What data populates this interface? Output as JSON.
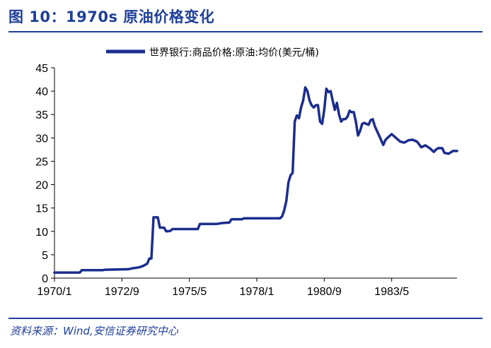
{
  "header": {
    "title": "图 10：1970s 原油价格变化"
  },
  "footer": {
    "source": "资料来源：Wind,安信证券研究中心"
  },
  "colors": {
    "accent": "#1f3f9a",
    "series_line": "#1b2d8f"
  },
  "chart_data": {
    "type": "line",
    "title": "",
    "xlabel": "",
    "ylabel": "",
    "ylim": [
      0,
      45
    ],
    "xlim": [
      "1970-01",
      "1985-12"
    ],
    "yticks": [
      0,
      5,
      10,
      15,
      20,
      25,
      30,
      35,
      40,
      45
    ],
    "xticks": [
      "1970/1",
      "1972/9",
      "1975/5",
      "1978/1",
      "1980/9",
      "1983/5"
    ],
    "grid": false,
    "legend_position": "top",
    "series": [
      {
        "name": "世界银行:商品价格:原油:均价(美元/桶)",
        "points": [
          [
            "1970-01",
            1.2
          ],
          [
            "1970-12",
            1.2
          ],
          [
            "1971-01",
            1.2
          ],
          [
            "1971-02",
            1.7
          ],
          [
            "1971-12",
            1.7
          ],
          [
            "1972-01",
            1.8
          ],
          [
            "1972-12",
            1.9
          ],
          [
            "1973-02",
            2.1
          ],
          [
            "1973-05",
            2.3
          ],
          [
            "1973-07",
            2.6
          ],
          [
            "1973-09",
            3.1
          ],
          [
            "1973-10",
            4.2
          ],
          [
            "1973-11",
            4.2
          ],
          [
            "1973-12",
            13.0
          ],
          [
            "1974-02",
            13.0
          ],
          [
            "1974-03",
            10.8
          ],
          [
            "1974-05",
            10.8
          ],
          [
            "1974-06",
            10.0
          ],
          [
            "1974-08",
            10.1
          ],
          [
            "1974-09",
            10.5
          ],
          [
            "1975-05",
            10.5
          ],
          [
            "1975-09",
            10.5
          ],
          [
            "1975-10",
            11.6
          ],
          [
            "1976-06",
            11.6
          ],
          [
            "1976-09",
            11.8
          ],
          [
            "1976-12",
            11.9
          ],
          [
            "1977-01",
            12.6
          ],
          [
            "1977-06",
            12.6
          ],
          [
            "1977-07",
            12.8
          ],
          [
            "1978-12",
            12.8
          ],
          [
            "1979-01",
            13.2
          ],
          [
            "1979-02",
            14.5
          ],
          [
            "1979-03",
            16.5
          ],
          [
            "1979-04",
            20.5
          ],
          [
            "1979-05",
            22.0
          ],
          [
            "1979-06",
            22.5
          ],
          [
            "1979-07",
            33.5
          ],
          [
            "1979-08",
            34.8
          ],
          [
            "1979-09",
            34.2
          ],
          [
            "1979-10",
            36.5
          ],
          [
            "1979-11",
            38.0
          ],
          [
            "1979-12",
            40.8
          ],
          [
            "1980-01",
            40.0
          ],
          [
            "1980-02",
            38.0
          ],
          [
            "1980-03",
            37.0
          ],
          [
            "1980-04",
            36.5
          ],
          [
            "1980-05",
            37.0
          ],
          [
            "1980-06",
            37.0
          ],
          [
            "1980-07",
            33.5
          ],
          [
            "1980-08",
            33.0
          ],
          [
            "1980-09",
            36.0
          ],
          [
            "1980-10",
            40.5
          ],
          [
            "1980-11",
            39.8
          ],
          [
            "1980-12",
            40.0
          ],
          [
            "1981-01",
            38.0
          ],
          [
            "1981-02",
            36.0
          ],
          [
            "1981-03",
            37.5
          ],
          [
            "1981-04",
            35.0
          ],
          [
            "1981-05",
            33.5
          ],
          [
            "1981-06",
            34.0
          ],
          [
            "1981-07",
            34.0
          ],
          [
            "1981-08",
            34.5
          ],
          [
            "1981-09",
            35.8
          ],
          [
            "1981-10",
            35.5
          ],
          [
            "1981-11",
            35.5
          ],
          [
            "1981-12",
            33.5
          ],
          [
            "1982-01",
            30.5
          ],
          [
            "1982-02",
            31.5
          ],
          [
            "1982-03",
            33.0
          ],
          [
            "1982-04",
            33.2
          ],
          [
            "1982-05",
            33.0
          ],
          [
            "1982-06",
            32.8
          ],
          [
            "1982-07",
            33.8
          ],
          [
            "1982-08",
            34.0
          ],
          [
            "1982-09",
            32.5
          ],
          [
            "1982-10",
            31.5
          ],
          [
            "1982-11",
            30.5
          ],
          [
            "1982-12",
            29.5
          ],
          [
            "1983-01",
            28.5
          ],
          [
            "1983-02",
            29.5
          ],
          [
            "1983-03",
            30.0
          ],
          [
            "1983-05",
            30.8
          ],
          [
            "1983-07",
            30.0
          ],
          [
            "1983-09",
            29.2
          ],
          [
            "1983-11",
            29.0
          ],
          [
            "1984-01",
            29.5
          ],
          [
            "1984-03",
            29.6
          ],
          [
            "1984-05",
            29.2
          ],
          [
            "1984-07",
            28.0
          ],
          [
            "1984-09",
            28.4
          ],
          [
            "1984-11",
            27.8
          ],
          [
            "1985-01",
            27.0
          ],
          [
            "1985-02",
            27.5
          ],
          [
            "1985-03",
            27.8
          ],
          [
            "1985-05",
            27.8
          ],
          [
            "1985-06",
            26.8
          ],
          [
            "1985-08",
            26.6
          ],
          [
            "1985-10",
            27.2
          ],
          [
            "1985-12",
            27.2
          ]
        ]
      }
    ]
  }
}
